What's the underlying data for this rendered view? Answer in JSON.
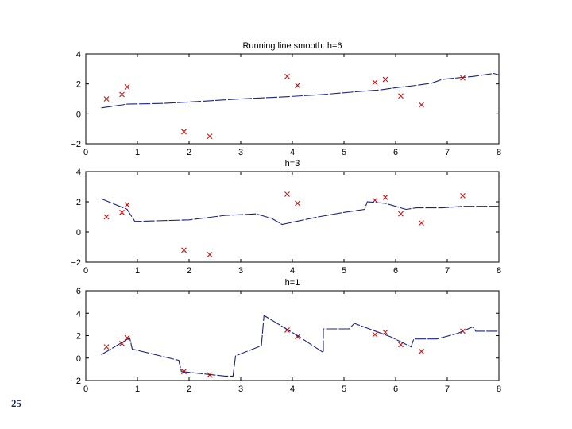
{
  "slide": {
    "number": "25"
  },
  "colors": {
    "line": "#1a237e",
    "points": "#cc1111",
    "axes": "#000000"
  },
  "chart_data": [
    {
      "type": "line",
      "title": "Running line smooth: h=6",
      "xlabel": "",
      "ylabel": "",
      "xlim": [
        0,
        8
      ],
      "ylim": [
        -2,
        4
      ],
      "xticks": [
        "0",
        "1",
        "2",
        "3",
        "4",
        "5",
        "6",
        "7",
        "8"
      ],
      "yticks": [
        "-2",
        "0",
        "2",
        "4"
      ],
      "grid": false,
      "series": [
        {
          "name": "",
          "kind": "scatter",
          "marker": "x",
          "x": [
            0.4,
            0.7,
            0.8,
            1.9,
            2.4,
            3.9,
            4.1,
            5.6,
            5.8,
            6.1,
            6.5,
            7.3
          ],
          "y": [
            1.0,
            1.3,
            1.8,
            -1.2,
            -1.5,
            2.5,
            1.9,
            2.1,
            2.3,
            1.2,
            0.6,
            2.4
          ]
        },
        {
          "name": "",
          "kind": "line",
          "x": [
            0.3,
            0.8,
            1.5,
            2.3,
            3.0,
            3.9,
            4.6,
            5.3,
            5.7,
            6.0,
            6.4,
            6.7,
            6.9,
            7.2,
            7.5,
            7.9,
            8.0
          ],
          "y": [
            0.4,
            0.65,
            0.7,
            0.85,
            1.0,
            1.15,
            1.3,
            1.5,
            1.6,
            1.75,
            1.9,
            2.05,
            2.3,
            2.4,
            2.5,
            2.7,
            2.6
          ]
        }
      ]
    },
    {
      "type": "line",
      "title": "h=3",
      "xlabel": "",
      "ylabel": "",
      "xlim": [
        0,
        8
      ],
      "ylim": [
        -2,
        4
      ],
      "xticks": [
        "0",
        "1",
        "2",
        "3",
        "4",
        "5",
        "6",
        "7",
        "8"
      ],
      "yticks": [
        "-2",
        "0",
        "2",
        "4"
      ],
      "grid": false,
      "series": [
        {
          "name": "",
          "kind": "scatter",
          "marker": "x",
          "x": [
            0.4,
            0.7,
            0.8,
            1.9,
            2.4,
            3.9,
            4.1,
            5.6,
            5.8,
            6.1,
            6.5,
            7.3
          ],
          "y": [
            1.0,
            1.3,
            1.8,
            -1.2,
            -1.5,
            2.5,
            1.9,
            2.1,
            2.3,
            1.2,
            0.6,
            2.4
          ]
        },
        {
          "name": "",
          "kind": "line",
          "x": [
            0.3,
            0.8,
            0.95,
            1.0,
            2.0,
            2.7,
            3.3,
            3.6,
            3.8,
            4.5,
            5.0,
            5.4,
            5.45,
            5.8,
            6.1,
            6.2,
            6.4,
            6.9,
            7.3,
            8.0
          ],
          "y": [
            2.2,
            1.5,
            0.7,
            0.7,
            0.8,
            1.1,
            1.2,
            0.9,
            0.5,
            1.0,
            1.3,
            1.5,
            2.0,
            1.9,
            1.6,
            1.5,
            1.6,
            1.6,
            1.7,
            1.7
          ]
        }
      ]
    },
    {
      "type": "line",
      "title": "h=1",
      "xlabel": "",
      "ylabel": "",
      "xlim": [
        0,
        8
      ],
      "ylim": [
        -2,
        6
      ],
      "xticks": [
        "0",
        "1",
        "2",
        "3",
        "4",
        "5",
        "6",
        "7",
        "8"
      ],
      "yticks": [
        "-2",
        "0",
        "2",
        "4",
        "6"
      ],
      "grid": false,
      "series": [
        {
          "name": "",
          "kind": "scatter",
          "marker": "x",
          "x": [
            0.4,
            0.7,
            0.8,
            1.9,
            2.4,
            3.9,
            4.1,
            5.6,
            5.8,
            6.1,
            6.5,
            7.3
          ],
          "y": [
            1.0,
            1.3,
            1.8,
            -1.2,
            -1.5,
            2.5,
            1.9,
            2.1,
            2.3,
            1.2,
            0.6,
            2.4
          ]
        },
        {
          "name": "",
          "kind": "line",
          "x": [
            0.3,
            0.85,
            0.9,
            1.8,
            1.85,
            2.7,
            2.85,
            2.9,
            3.4,
            3.45,
            4.1,
            4.6,
            4.6,
            5.1,
            5.2,
            5.9,
            6.3,
            6.35,
            6.5,
            6.8,
            7.2,
            7.5,
            7.55,
            8.0
          ],
          "y": [
            0.3,
            1.8,
            0.8,
            -0.2,
            -1.2,
            -1.6,
            -1.6,
            0.2,
            1.1,
            3.8,
            2.0,
            0.5,
            2.6,
            2.6,
            3.1,
            1.9,
            1.0,
            1.7,
            1.7,
            1.7,
            2.2,
            2.8,
            2.4,
            2.4
          ]
        }
      ]
    }
  ]
}
